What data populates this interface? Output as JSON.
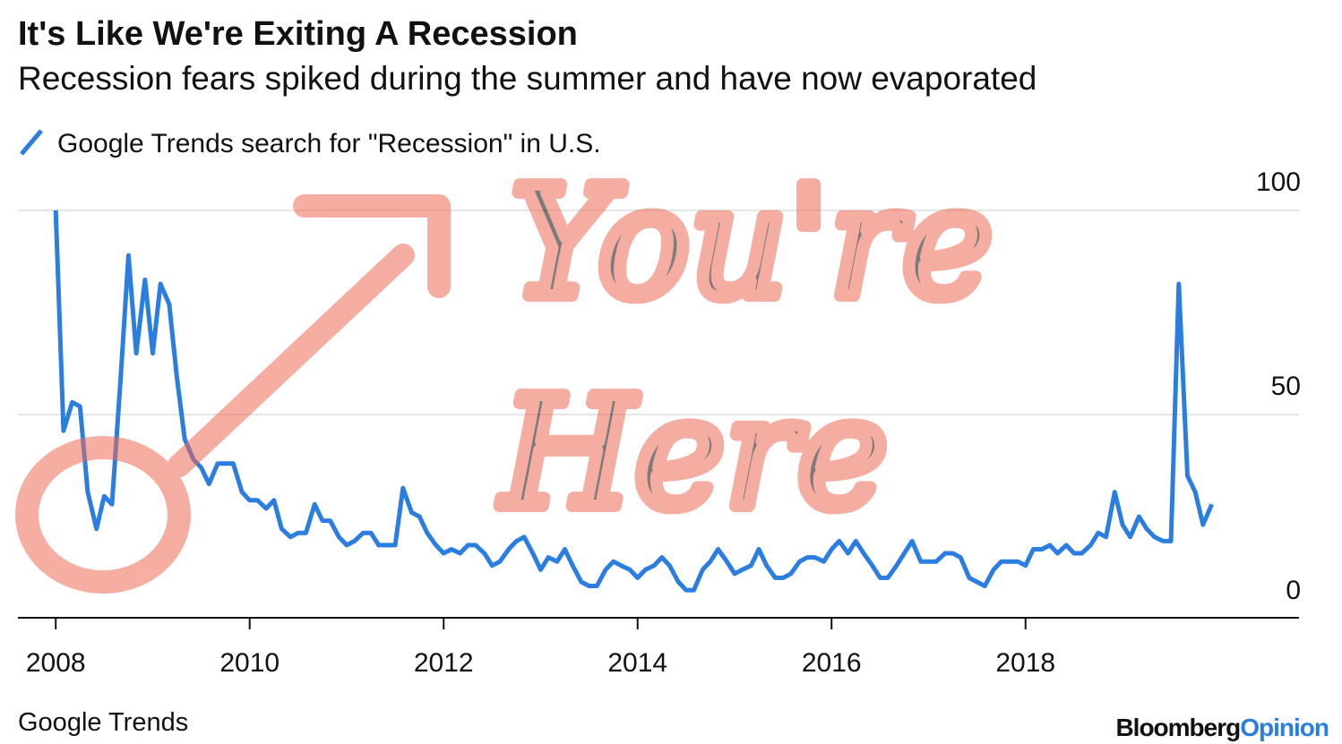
{
  "chart_data": {
    "type": "line",
    "title": "It's Like We're Exiting A Recession",
    "subtitle": "Recession fears spiked during the summer and have now evaporated",
    "source": "Google Trends",
    "brand": [
      "Bloomberg",
      "Opinion"
    ],
    "annotations": [
      "You're",
      "Here"
    ],
    "x": [
      2008,
      2008.08,
      2008.17,
      2008.25,
      2008.33,
      2008.42,
      2008.5,
      2008.58,
      2008.67,
      2008.75,
      2008.83,
      2008.92,
      2009,
      2009.08,
      2009.17,
      2009.25,
      2009.33,
      2009.42,
      2009.5,
      2009.58,
      2009.67,
      2009.75,
      2009.83,
      2009.92,
      2010,
      2010.08,
      2010.17,
      2010.25,
      2010.33,
      2010.42,
      2010.5,
      2010.58,
      2010.67,
      2010.75,
      2010.83,
      2010.92,
      2011,
      2011.08,
      2011.17,
      2011.25,
      2011.33,
      2011.42,
      2011.5,
      2011.58,
      2011.67,
      2011.75,
      2011.83,
      2011.92,
      2012,
      2012.08,
      2012.17,
      2012.25,
      2012.33,
      2012.42,
      2012.5,
      2012.58,
      2012.67,
      2012.75,
      2012.83,
      2012.92,
      2013,
      2013.08,
      2013.17,
      2013.25,
      2013.33,
      2013.42,
      2013.5,
      2013.58,
      2013.67,
      2013.75,
      2013.83,
      2013.92,
      2014,
      2014.08,
      2014.17,
      2014.25,
      2014.33,
      2014.42,
      2014.5,
      2014.58,
      2014.67,
      2014.75,
      2014.83,
      2014.92,
      2015,
      2015.08,
      2015.17,
      2015.25,
      2015.33,
      2015.42,
      2015.5,
      2015.58,
      2015.67,
      2015.75,
      2015.83,
      2015.92,
      2016,
      2016.08,
      2016.17,
      2016.25,
      2016.33,
      2016.42,
      2016.5,
      2016.58,
      2016.67,
      2016.75,
      2016.83,
      2016.92,
      2017,
      2017.08,
      2017.17,
      2017.25,
      2017.33,
      2017.42,
      2017.5,
      2017.58,
      2017.67,
      2017.75,
      2017.83,
      2017.92,
      2018,
      2018.08,
      2018.17,
      2018.25,
      2018.33,
      2018.42,
      2018.5,
      2018.58,
      2018.67,
      2018.75,
      2018.83,
      2018.92,
      2019,
      2019.08,
      2019.17,
      2019.25,
      2019.33,
      2019.42,
      2019.5,
      2019.58,
      2019.67,
      2019.75,
      2019.83,
      2019.92
    ],
    "series": [
      {
        "name": "Google Trends search for \"Recession\" in U.S.",
        "color": "#2a7de1",
        "values": [
          100,
          46,
          53,
          52,
          31,
          22,
          30,
          28,
          59,
          89,
          65,
          83,
          65,
          82,
          77,
          59,
          44,
          39,
          37,
          33,
          38,
          38,
          38,
          31,
          29,
          29,
          27,
          29,
          22,
          20,
          21,
          21,
          28,
          24,
          24,
          20,
          18,
          19,
          21,
          21,
          18,
          18,
          18,
          32,
          26,
          25,
          21,
          18,
          16,
          17,
          16,
          18,
          18,
          16,
          13,
          14,
          17,
          19,
          20,
          16,
          12,
          15,
          14,
          17,
          13,
          9,
          8,
          8,
          12,
          14,
          13,
          12,
          10,
          12,
          13,
          15,
          13,
          9,
          7,
          7,
          12,
          14,
          17,
          14,
          11,
          12,
          13,
          17,
          13,
          10,
          10,
          11,
          14,
          15,
          15,
          14,
          17,
          19,
          16,
          19,
          16,
          13,
          10,
          10,
          13,
          16,
          19,
          14,
          14,
          14,
          16,
          16,
          15,
          10,
          9,
          8,
          12,
          14,
          14,
          14,
          13,
          17,
          17,
          18,
          16,
          18,
          16,
          16,
          18,
          21,
          20,
          31,
          23,
          20,
          25,
          22,
          20,
          19,
          19,
          82,
          35,
          31,
          23,
          28
        ]
      }
    ],
    "xlim": [
      2007.61,
      2020.82
    ],
    "xticks": [
      2008,
      2010,
      2012,
      2014,
      2016,
      2018
    ],
    "ylim": [
      0,
      100
    ],
    "yticks": [
      0,
      50,
      100
    ],
    "grid": true
  }
}
